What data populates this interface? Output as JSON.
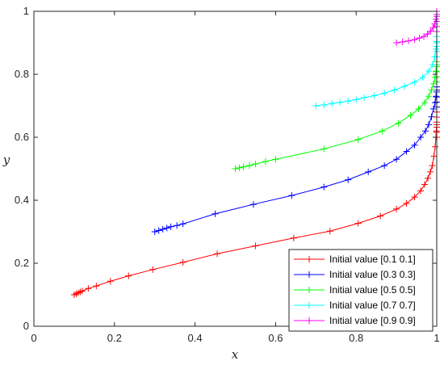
{
  "chart_data": {
    "type": "line",
    "title": "",
    "xlabel": "x",
    "ylabel": "y",
    "xlim": [
      0,
      1
    ],
    "ylim": [
      0,
      1
    ],
    "xticks": [
      0,
      0.2,
      0.4,
      0.6,
      0.8,
      1
    ],
    "yticks": [
      0,
      0.2,
      0.4,
      0.6,
      0.8,
      1
    ],
    "xtick_labels": [
      "0",
      "0.2",
      "0.4",
      "0.6",
      "0.8",
      "1"
    ],
    "ytick_labels": [
      "0",
      "0.2",
      "0.4",
      "0.6",
      "0.8",
      "1"
    ],
    "grid": false,
    "legend_position": "bottom-right",
    "marker": "+",
    "series": [
      {
        "name": "Initial value [0.1 0.1]",
        "color": "#ff0000",
        "x": [
          0.1,
          0.105,
          0.11,
          0.115,
          0.12,
          0.135,
          0.155,
          0.19,
          0.235,
          0.295,
          0.37,
          0.455,
          0.55,
          0.645,
          0.735,
          0.805,
          0.86,
          0.9,
          0.925,
          0.945,
          0.96,
          0.97,
          0.978,
          0.984,
          0.989,
          0.993,
          0.996,
          0.998,
          0.999,
          1.0
        ],
        "y": [
          0.1,
          0.103,
          0.106,
          0.109,
          0.112,
          0.12,
          0.128,
          0.143,
          0.16,
          0.18,
          0.203,
          0.23,
          0.255,
          0.28,
          0.302,
          0.327,
          0.35,
          0.372,
          0.39,
          0.41,
          0.43,
          0.45,
          0.47,
          0.49,
          0.51,
          0.54,
          0.57,
          0.6,
          0.62,
          0.64
        ]
      },
      {
        "name": "Initial value [0.3 0.3]",
        "color": "#0000ff",
        "x": [
          0.3,
          0.31,
          0.32,
          0.33,
          0.34,
          0.355,
          0.37,
          0.45,
          0.545,
          0.64,
          0.72,
          0.78,
          0.83,
          0.87,
          0.9,
          0.925,
          0.945,
          0.96,
          0.972,
          0.98,
          0.987,
          0.992,
          0.996,
          0.998,
          1.0
        ],
        "y": [
          0.3,
          0.304,
          0.308,
          0.312,
          0.316,
          0.32,
          0.325,
          0.357,
          0.387,
          0.415,
          0.442,
          0.465,
          0.49,
          0.51,
          0.53,
          0.555,
          0.575,
          0.6,
          0.62,
          0.64,
          0.665,
          0.69,
          0.71,
          0.73,
          0.75
        ]
      },
      {
        "name": "Initial value [0.5 0.5]",
        "color": "#00ff00",
        "x": [
          0.5,
          0.51,
          0.52,
          0.535,
          0.55,
          0.575,
          0.6,
          0.72,
          0.805,
          0.865,
          0.905,
          0.935,
          0.955,
          0.97,
          0.98,
          0.987,
          0.992,
          0.996,
          0.998,
          1.0
        ],
        "y": [
          0.5,
          0.503,
          0.506,
          0.51,
          0.515,
          0.523,
          0.53,
          0.563,
          0.593,
          0.62,
          0.645,
          0.67,
          0.69,
          0.71,
          0.73,
          0.75,
          0.77,
          0.79,
          0.81,
          0.83
        ]
      },
      {
        "name": "Initial value [0.7 0.7]",
        "color": "#00ffff",
        "x": [
          0.7,
          0.72,
          0.74,
          0.76,
          0.78,
          0.8,
          0.82,
          0.845,
          0.87,
          0.895,
          0.92,
          0.945,
          0.965,
          0.98,
          0.99,
          0.995,
          0.998,
          1.0
        ],
        "y": [
          0.7,
          0.703,
          0.707,
          0.711,
          0.715,
          0.72,
          0.726,
          0.732,
          0.74,
          0.75,
          0.762,
          0.775,
          0.79,
          0.81,
          0.83,
          0.855,
          0.88,
          0.9
        ]
      },
      {
        "name": "Initial value [0.9 0.9]",
        "color": "#ff00ff",
        "x": [
          0.9,
          0.915,
          0.93,
          0.945,
          0.957,
          0.968,
          0.977,
          0.985,
          0.991,
          0.995,
          0.998,
          1.0
        ],
        "y": [
          0.9,
          0.903,
          0.906,
          0.91,
          0.915,
          0.92,
          0.928,
          0.937,
          0.948,
          0.96,
          0.975,
          0.99
        ]
      }
    ],
    "vertical_run": {
      "x": 1.0,
      "y_from": 0.6,
      "y_to": 1.0,
      "count": 26
    }
  }
}
